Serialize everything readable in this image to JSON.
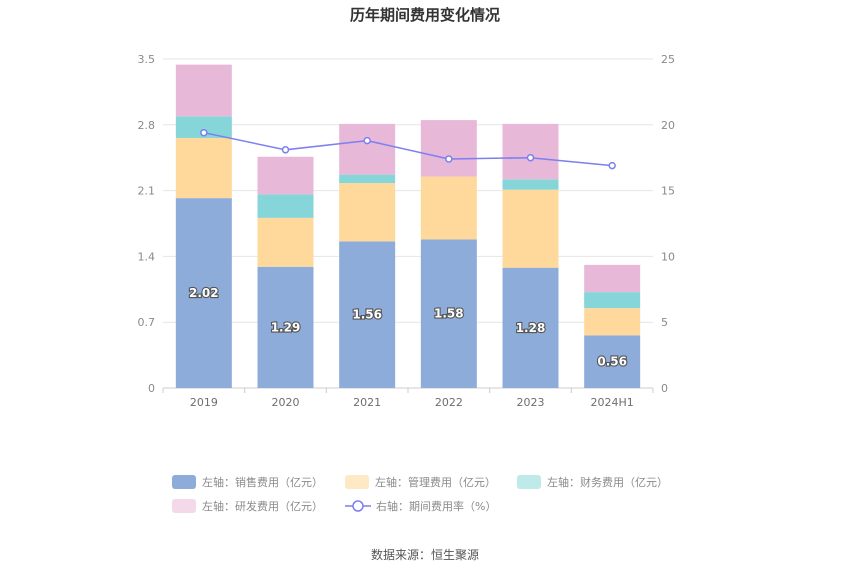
{
  "chart_data": {
    "type": "bar",
    "title": "历年期间费用变化情况",
    "categories": [
      "2019",
      "2020",
      "2021",
      "2022",
      "2023",
      "2024H1"
    ],
    "stacked": true,
    "left_axis": {
      "ylim": [
        0,
        3.5
      ],
      "ticks": [
        "0",
        "0.7",
        "1.4",
        "2.1",
        "2.8",
        "3.5"
      ]
    },
    "right_axis": {
      "ylim": [
        0,
        25
      ],
      "ticks": [
        "0",
        "5",
        "10",
        "15",
        "20",
        "25"
      ]
    },
    "grid": true,
    "legend_position": "bottom",
    "series": [
      {
        "name": "左轴：销售费用（亿元）",
        "axis": "left",
        "color": "#8eacd9",
        "values": [
          2.02,
          1.29,
          1.56,
          1.58,
          1.28,
          0.56
        ],
        "labels": [
          "2.02",
          "1.29",
          "1.56",
          "1.58",
          "1.28",
          "0.56"
        ]
      },
      {
        "name": "左轴：管理费用（亿元）",
        "axis": "left",
        "color": "#ffd99b",
        "values": [
          0.64,
          0.52,
          0.62,
          0.67,
          0.83,
          0.29
        ]
      },
      {
        "name": "左轴：财务费用（亿元）",
        "axis": "left",
        "color": "#86d5d8",
        "values": [
          0.23,
          0.25,
          0.09,
          0.0,
          0.11,
          0.17
        ]
      },
      {
        "name": "左轴：研发费用（亿元）",
        "axis": "left",
        "color": "#e8b8d9",
        "values": [
          0.55,
          0.4,
          0.54,
          0.6,
          0.59,
          0.29
        ]
      },
      {
        "name": "右轴：期间费用率（%）",
        "axis": "right",
        "type": "line",
        "color": "#7b7ff0",
        "values": [
          19.4,
          18.1,
          18.8,
          17.4,
          17.5,
          16.9
        ]
      }
    ],
    "legend_colors": [
      "#8eacd9",
      "#ffe8c4",
      "#bfeaea",
      "#f3d9ea",
      "#7b7ff0"
    ]
  },
  "source": "数据来源：恒生聚源"
}
